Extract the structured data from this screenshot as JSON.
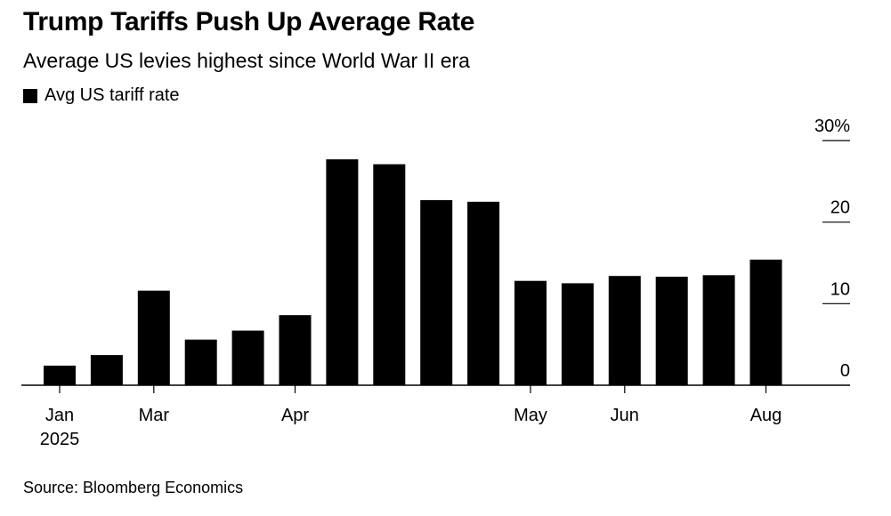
{
  "header": {
    "title": "Trump Tariffs Push Up Average Rate",
    "subtitle": "Average US levies highest since World War II era"
  },
  "legend": {
    "label": "Avg US tariff rate"
  },
  "footer": {
    "source": "Source: Bloomberg Economics"
  },
  "colors": {
    "bar": "#000000",
    "axis": "#000000",
    "background": "#ffffff"
  },
  "chart_data": {
    "type": "bar",
    "series": [
      {
        "name": "Avg US tariff rate",
        "values": [
          2.4,
          3.7,
          11.6,
          5.6,
          6.7,
          8.6,
          27.7,
          27.1,
          22.7,
          22.5,
          12.8,
          12.5,
          13.4,
          13.3,
          13.5,
          15.4
        ]
      }
    ],
    "x_tick_labels": [
      {
        "label": "Jan",
        "sublabel": "2025",
        "at_bar": 0
      },
      {
        "label": "Mar",
        "at_bar": 2
      },
      {
        "label": "Apr",
        "at_bar": 5
      },
      {
        "label": "May",
        "at_bar": 10
      },
      {
        "label": "Jun",
        "at_bar": 12
      },
      {
        "label": "Aug",
        "at_bar": 15
      }
    ],
    "y_ticks": [
      {
        "value": 0,
        "label": "0"
      },
      {
        "value": 10,
        "label": "10"
      },
      {
        "value": 20,
        "label": "20"
      },
      {
        "value": 30,
        "label": "30%"
      }
    ],
    "ylim": [
      0,
      30
    ],
    "grid": false,
    "legend_position": "top-left",
    "y_axis_position": "right"
  }
}
